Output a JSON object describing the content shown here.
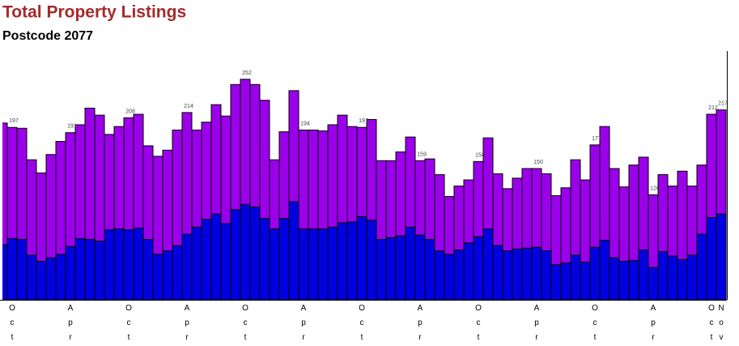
{
  "chart_data": {
    "type": "stacked-bar",
    "title": "Total Property Listings",
    "subtitle": "Postcode 2077",
    "categories": [
      null,
      "Oct",
      null,
      null,
      null,
      null,
      null,
      "Apr",
      null,
      null,
      null,
      null,
      null,
      "Oct",
      null,
      null,
      null,
      null,
      null,
      "Apr",
      null,
      null,
      null,
      null,
      null,
      "Oct",
      null,
      null,
      null,
      null,
      null,
      "Apr",
      null,
      null,
      null,
      null,
      null,
      "Oct",
      null,
      null,
      null,
      null,
      null,
      "Apr",
      null,
      null,
      null,
      null,
      null,
      "Oct",
      null,
      null,
      null,
      null,
      null,
      "Apr",
      null,
      null,
      null,
      null,
      null,
      "Oct",
      null,
      null,
      null,
      null,
      null,
      "Apr",
      null,
      null,
      null,
      null,
      null,
      "Oct",
      "Nov"
    ],
    "series": [
      {
        "color": "#0000e0",
        "values": [
          63,
          70,
          69,
          51,
          44,
          48,
          52,
          61,
          70,
          69,
          67,
          80,
          81,
          80,
          82,
          69,
          52,
          56,
          62,
          75,
          83,
          92,
          98,
          87,
          103,
          109,
          106,
          93,
          81,
          93,
          112,
          81,
          81,
          81,
          83,
          88,
          89,
          95,
          91,
          69,
          71,
          73,
          83,
          74,
          69,
          56,
          52,
          57,
          65,
          72,
          81,
          62,
          56,
          58,
          59,
          60,
          56,
          40,
          42,
          51,
          43,
          60,
          68,
          48,
          44,
          45,
          57,
          37,
          55,
          50,
          46,
          51,
          75,
          94,
          98
        ]
      },
      {
        "color": "#9b00ea",
        "values": [
          139,
          127,
          127,
          109,
          101,
          118,
          129,
          130,
          130,
          150,
          144,
          109,
          117,
          128,
          130,
          107,
          112,
          115,
          132,
          139,
          111,
          111,
          125,
          123,
          143,
          143,
          140,
          135,
          79,
          99,
          127,
          113,
          113,
          112,
          117,
          123,
          109,
          102,
          115,
          90,
          88,
          96,
          103,
          85,
          92,
          87,
          66,
          73,
          72,
          86,
          104,
          82,
          71,
          81,
          91,
          90,
          88,
          79,
          86,
          109,
          94,
          117,
          130,
          102,
          85,
          109,
          106,
          83,
          88,
          80,
          101,
          79,
          79,
          118,
          119
        ]
      }
    ],
    "total_labels": [
      null,
      197,
      null,
      null,
      null,
      null,
      null,
      191,
      null,
      null,
      null,
      null,
      null,
      208,
      null,
      null,
      null,
      null,
      null,
      214,
      null,
      null,
      null,
      null,
      null,
      252,
      null,
      null,
      null,
      null,
      null,
      194,
      null,
      null,
      null,
      null,
      null,
      197,
      null,
      null,
      null,
      null,
      null,
      159,
      null,
      null,
      null,
      null,
      null,
      158,
      null,
      null,
      null,
      null,
      null,
      150,
      null,
      null,
      null,
      null,
      null,
      177,
      null,
      null,
      null,
      null,
      null,
      120,
      null,
      null,
      null,
      null,
      null,
      212,
      217
    ],
    "ylim": [
      0,
      280
    ]
  }
}
